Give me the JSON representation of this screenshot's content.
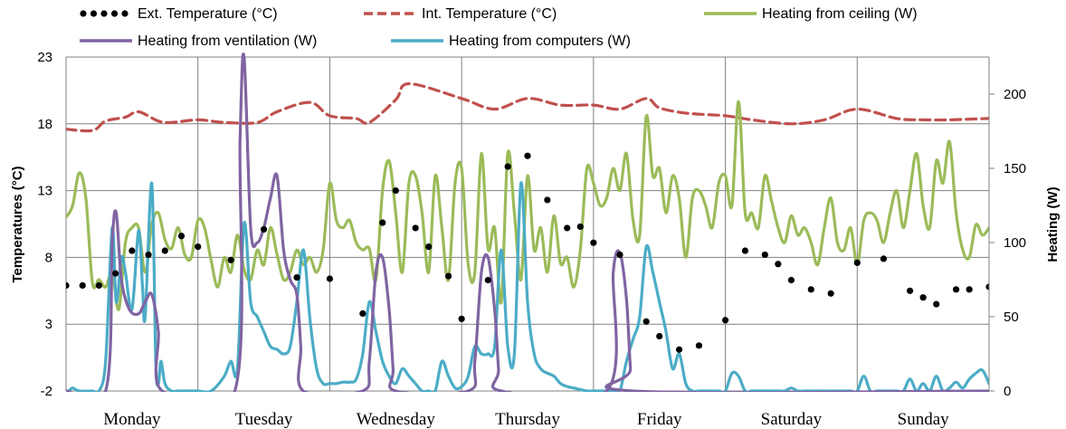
{
  "chart_data": {
    "type": "line",
    "title": "",
    "x_unit": "day",
    "x_range": [
      0,
      7
    ],
    "categories": [
      "Monday",
      "Tuesday",
      "Wednesday",
      "Thursday",
      "Friday",
      "Saturday",
      "Sunday"
    ],
    "y_left": {
      "label": "Temperatures (°C)",
      "range": [
        -2,
        23
      ],
      "ticks": [
        -2,
        3,
        8,
        13,
        18,
        23
      ]
    },
    "y_right": {
      "label": "Heating (W)",
      "range": [
        0,
        225
      ],
      "ticks": [
        0,
        50,
        100,
        150,
        200
      ]
    },
    "grid": true,
    "legend_position": "top",
    "colors": {
      "ext": "#000000",
      "int": "#c0504d",
      "ceiling": "#9bbb59",
      "ventilation": "#8064a2",
      "computers": "#4bacc6",
      "grid": "#808080"
    },
    "series": [
      {
        "name": "Ext. Temperature (°C)",
        "axis": "left",
        "style": "dots",
        "key": "ext",
        "x": [
          0,
          0.125,
          0.25,
          0.375,
          0.5,
          0.625,
          0.75,
          0.875,
          1,
          1.25,
          1.5,
          1.75,
          2,
          2.25,
          2.4,
          2.5,
          2.65,
          2.75,
          2.9,
          3,
          3.2,
          3.35,
          3.5,
          3.65,
          3.8,
          3.9,
          4,
          4.2,
          4.4,
          4.5,
          4.65,
          4.8,
          5,
          5.15,
          5.3,
          5.4,
          5.5,
          5.65,
          5.8,
          6,
          6.2,
          6.4,
          6.5,
          6.6,
          6.75,
          6.85,
          7
        ],
        "y": [
          5.9,
          5.9,
          5.9,
          6.8,
          8.5,
          8.2,
          8.5,
          9.6,
          8.8,
          7.8,
          10.1,
          6.5,
          6.4,
          3.8,
          10.6,
          13,
          10.2,
          8.8,
          6.6,
          3.4,
          6.3,
          14.8,
          15.6,
          12.3,
          10.2,
          10.3,
          9.1,
          8.2,
          3.2,
          2.1,
          1.1,
          1.4,
          3.3,
          8.5,
          8.2,
          7.5,
          6.3,
          5.6,
          5.3,
          7.6,
          7.9,
          5.5,
          5,
          4.5,
          5.6,
          5.6,
          5.8
        ]
      },
      {
        "name": "Int. Temperature (°C)",
        "axis": "left",
        "style": "dashed",
        "key": "int",
        "x": [
          0,
          0.2,
          0.3,
          0.45,
          0.55,
          0.7,
          0.8,
          1,
          1.2,
          1.45,
          1.6,
          1.85,
          2,
          2.2,
          2.3,
          2.5,
          2.6,
          3,
          3.25,
          3.5,
          3.75,
          4,
          4.2,
          4.4,
          4.5,
          4.7,
          5,
          5.2,
          5.5,
          5.75,
          6,
          6.3,
          6.5,
          6.7,
          7
        ],
        "y": [
          17.6,
          17.5,
          18.2,
          18.5,
          18.9,
          18.2,
          18.1,
          18.3,
          18.1,
          18.1,
          18.9,
          19.6,
          18.6,
          18.4,
          18.1,
          19.8,
          21,
          19.9,
          19.1,
          19.9,
          19.4,
          19.4,
          19.1,
          19.9,
          19.2,
          18.8,
          18.6,
          18.3,
          18,
          18.3,
          19.1,
          18.4,
          18.3,
          18.3,
          18.4
        ]
      },
      {
        "name": "Heating from ceiling (W)",
        "axis": "right",
        "style": "solid",
        "key": "ceiling",
        "x": [
          0,
          0.05,
          0.1,
          0.15,
          0.2,
          0.25,
          0.3,
          0.35,
          0.4,
          0.45,
          0.5,
          0.55,
          0.6,
          0.65,
          0.7,
          0.75,
          0.8,
          0.85,
          0.9,
          0.95,
          1,
          1.05,
          1.1,
          1.15,
          1.2,
          1.25,
          1.3,
          1.35,
          1.4,
          1.45,
          1.5,
          1.55,
          1.6,
          1.65,
          1.7,
          1.75,
          1.8,
          1.85,
          1.9,
          1.95,
          2,
          2.05,
          2.1,
          2.15,
          2.2,
          2.25,
          2.3,
          2.35,
          2.4,
          2.45,
          2.5,
          2.55,
          2.6,
          2.65,
          2.7,
          2.75,
          2.8,
          2.85,
          2.9,
          2.95,
          3,
          3.05,
          3.1,
          3.15,
          3.2,
          3.25,
          3.3,
          3.35,
          3.4,
          3.45,
          3.5,
          3.55,
          3.6,
          3.65,
          3.7,
          3.75,
          3.8,
          3.85,
          3.9,
          3.95,
          4,
          4.05,
          4.1,
          4.15,
          4.2,
          4.25,
          4.3,
          4.35,
          4.4,
          4.45,
          4.5,
          4.55,
          4.6,
          4.65,
          4.7,
          4.75,
          4.8,
          4.85,
          4.9,
          4.95,
          5,
          5.05,
          5.1,
          5.15,
          5.2,
          5.25,
          5.3,
          5.35,
          5.4,
          5.45,
          5.5,
          5.55,
          5.6,
          5.65,
          5.7,
          5.75,
          5.8,
          5.85,
          5.9,
          5.95,
          6,
          6.05,
          6.1,
          6.15,
          6.2,
          6.25,
          6.3,
          6.35,
          6.4,
          6.45,
          6.5,
          6.55,
          6.6,
          6.65,
          6.7,
          6.75,
          6.8,
          6.85,
          6.9,
          6.95,
          7
        ],
        "y": [
          117,
          125,
          147,
          130,
          73,
          75,
          70,
          80,
          55,
          100,
          110,
          110,
          80,
          112,
          120,
          102,
          96,
          110,
          92,
          90,
          115,
          110,
          88,
          70,
          90,
          80,
          105,
          82,
          75,
          95,
          85,
          110,
          92,
          75,
          80,
          95,
          85,
          90,
          80,
          95,
          140,
          115,
          110,
          115,
          100,
          95,
          96,
          75,
          135,
          155,
          120,
          80,
          140,
          145,
          120,
          80,
          145,
          110,
          75,
          140,
          150,
          85,
          80,
          160,
          96,
          110,
          60,
          160,
          120,
          75,
          145,
          95,
          110,
          80,
          118,
          86,
          90,
          70,
          95,
          150,
          140,
          125,
          130,
          150,
          135,
          160,
          115,
          105,
          185,
          145,
          150,
          120,
          145,
          130,
          90,
          130,
          135,
          125,
          110,
          140,
          145,
          125,
          195,
          120,
          120,
          110,
          145,
          128,
          110,
          100,
          118,
          105,
          110,
          100,
          85,
          110,
          130,
          100,
          95,
          110,
          85,
          115,
          120,
          115,
          100,
          120,
          135,
          110,
          135,
          160,
          125,
          110,
          155,
          140,
          168,
          120,
          95,
          90,
          112,
          105,
          110
        ]
      },
      {
        "name": "Heating from ventilation (W)",
        "axis": "right",
        "style": "solid",
        "key": "ventilation",
        "x": [
          0,
          0.3,
          0.35,
          0.38,
          0.42,
          0.48,
          0.55,
          0.6,
          0.65,
          0.7,
          0.73,
          1.28,
          1.32,
          1.35,
          1.4,
          1.45,
          1.5,
          1.55,
          1.6,
          1.65,
          1.7,
          1.75,
          1.78,
          1.8,
          2.25,
          2.3,
          2.35,
          2.4,
          2.45,
          2.48,
          2.5,
          3.05,
          3.1,
          3.15,
          3.2,
          3.25,
          3.28,
          3.3,
          4.1,
          4.15,
          4.2,
          4.25,
          4.28,
          4.3,
          7
        ],
        "y": [
          0,
          0,
          100,
          120,
          75,
          55,
          52,
          60,
          65,
          40,
          0,
          0,
          170,
          225,
          110,
          100,
          110,
          130,
          145,
          95,
          75,
          65,
          30,
          0,
          0,
          20,
          80,
          90,
          55,
          15,
          0,
          0,
          20,
          80,
          90,
          55,
          15,
          0,
          0,
          80,
          93,
          62,
          15,
          0,
          0
        ]
      },
      {
        "name": "Heating from computers (W)",
        "axis": "right",
        "style": "solid",
        "key": "computers",
        "x": [
          0,
          0.02,
          0.05,
          0.1,
          0.2,
          0.25,
          0.3,
          0.35,
          0.38,
          0.42,
          0.45,
          0.5,
          0.55,
          0.58,
          0.6,
          0.65,
          0.68,
          0.7,
          0.72,
          0.75,
          0.8,
          0.85,
          0.9,
          1,
          1.1,
          1.2,
          1.25,
          1.3,
          1.35,
          1.4,
          1.45,
          1.5,
          1.55,
          1.6,
          1.65,
          1.7,
          1.75,
          1.8,
          1.85,
          1.9,
          1.95,
          2,
          2.05,
          2.1,
          2.15,
          2.2,
          2.25,
          2.3,
          2.35,
          2.4,
          2.45,
          2.5,
          2.55,
          2.6,
          2.65,
          2.7,
          2.75,
          2.8,
          2.85,
          2.9,
          2.95,
          3,
          3.05,
          3.1,
          3.15,
          3.2,
          3.25,
          3.3,
          3.35,
          3.4,
          3.45,
          3.5,
          3.55,
          3.6,
          3.65,
          3.7,
          3.75,
          3.8,
          3.85,
          3.9,
          3.95,
          4,
          4.05,
          4.1,
          4.15,
          4.2,
          4.25,
          4.3,
          4.35,
          4.4,
          4.45,
          4.5,
          4.55,
          4.6,
          4.65,
          4.7,
          4.75,
          4.8,
          4.85,
          4.9,
          4.95,
          5,
          5.05,
          5.1,
          5.15,
          5.2,
          5.25,
          5.3,
          5.35,
          5.4,
          5.45,
          5.5,
          5.55,
          5.6,
          5.65,
          5.7,
          5.75,
          5.8,
          5.85,
          5.9,
          5.95,
          6,
          6.05,
          6.1,
          6.15,
          6.2,
          6.25,
          6.3,
          6.35,
          6.4,
          6.45,
          6.5,
          6.55,
          6.6,
          6.65,
          6.7,
          6.75,
          6.8,
          6.85,
          6.9,
          6.95,
          7
        ],
        "y": [
          0,
          0,
          2,
          0,
          0,
          0,
          20,
          110,
          60,
          90,
          80,
          55,
          108,
          70,
          50,
          140,
          20,
          5,
          20,
          5,
          0,
          0,
          0,
          0,
          0,
          10,
          20,
          15,
          113,
          60,
          50,
          40,
          30,
          28,
          25,
          30,
          60,
          95,
          48,
          15,
          5,
          5,
          5,
          6,
          6,
          8,
          25,
          60,
          40,
          20,
          10,
          5,
          15,
          10,
          5,
          0,
          0,
          0,
          20,
          10,
          2,
          3,
          10,
          30,
          25,
          25,
          30,
          95,
          30,
          25,
          140,
          60,
          25,
          15,
          12,
          10,
          5,
          3,
          2,
          1,
          0,
          0,
          0,
          0,
          0,
          0,
          20,
          35,
          50,
          97,
          80,
          60,
          40,
          15,
          25,
          5,
          0,
          0,
          0,
          0,
          0,
          0,
          12,
          10,
          0,
          0,
          0,
          0,
          0,
          0,
          0,
          2,
          0,
          0,
          0,
          0,
          0,
          0,
          0,
          0,
          0,
          0,
          10,
          0,
          0,
          0,
          0,
          0,
          0,
          8,
          0,
          5,
          0,
          10,
          0,
          2,
          6,
          2,
          8,
          12,
          14,
          5
        ]
      }
    ]
  }
}
